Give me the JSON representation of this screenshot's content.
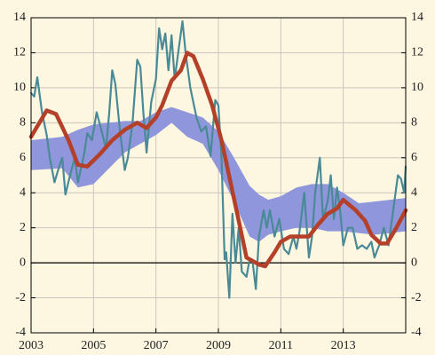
{
  "chart_data": {
    "type": "line",
    "xlim": [
      2003,
      2015
    ],
    "xticks": [
      2003,
      2005,
      2007,
      2009,
      2011,
      2013
    ],
    "ylim": [
      -4,
      14
    ],
    "yticks": [
      -4,
      -2,
      0,
      2,
      4,
      6,
      8,
      10,
      12,
      14
    ],
    "y2lim": [
      -4,
      14
    ],
    "y2ticks": [
      -4,
      -2,
      0,
      2,
      4,
      6,
      8,
      10,
      12,
      14
    ],
    "grid": true,
    "band": {
      "color": "#8f96dc",
      "x": [
        2003,
        2004,
        2004.5,
        2005,
        2006,
        2006.5,
        2007,
        2007.5,
        2008,
        2008.5,
        2009,
        2009.5,
        2010,
        2010.3,
        2010.6,
        2011,
        2011.5,
        2012,
        2012.5,
        2013,
        2013.5,
        2014,
        2015
      ],
      "lower": [
        5.3,
        5.4,
        4.3,
        4.5,
        6.3,
        6.8,
        7.3,
        8.0,
        7.2,
        6.8,
        5.3,
        3.5,
        1.5,
        1.2,
        1.6,
        1.8,
        2.0,
        2.0,
        1.8,
        1.8,
        1.7,
        1.6,
        1.8
      ],
      "upper": [
        7.0,
        7.2,
        7.6,
        7.9,
        8.1,
        8.1,
        8.6,
        8.9,
        8.6,
        8.3,
        7.5,
        6.0,
        4.4,
        3.9,
        3.6,
        3.8,
        4.3,
        4.5,
        4.5,
        4.0,
        3.4,
        3.5,
        3.7
      ]
    },
    "series": [
      {
        "color": "#4a8a96",
        "width": 2.2,
        "x": [
          2003.0,
          2003.1,
          2003.2,
          2003.35,
          2003.5,
          2003.6,
          2003.75,
          2003.9,
          2004.0,
          2004.1,
          2004.25,
          2004.4,
          2004.5,
          2004.7,
          2004.8,
          2004.95,
          2005.1,
          2005.25,
          2005.4,
          2005.5,
          2005.6,
          2005.7,
          2005.85,
          2006.0,
          2006.1,
          2006.25,
          2006.4,
          2006.5,
          2006.6,
          2006.7,
          2006.85,
          2007.0,
          2007.1,
          2007.2,
          2007.3,
          2007.4,
          2007.5,
          2007.6,
          2007.75,
          2007.85,
          2007.95,
          2008.1,
          2008.3,
          2008.45,
          2008.6,
          2008.75,
          2008.9,
          2009.0,
          2009.1,
          2009.2,
          2009.25,
          2009.35,
          2009.45,
          2009.55,
          2009.65,
          2009.75,
          2009.9,
          2010.0,
          2010.1,
          2010.2,
          2010.3,
          2010.45,
          2010.55,
          2010.65,
          2010.8,
          2010.95,
          2011.1,
          2011.25,
          2011.4,
          2011.5,
          2011.6,
          2011.75,
          2011.9,
          2012.0,
          2012.1,
          2012.25,
          2012.35,
          2012.5,
          2012.6,
          2012.7,
          2012.8,
          2012.9,
          2013.0,
          2013.15,
          2013.3,
          2013.45,
          2013.6,
          2013.75,
          2013.9,
          2014.0,
          2014.15,
          2014.3,
          2014.45,
          2014.6,
          2014.75,
          2014.85,
          2014.95,
          2015.0
        ],
        "values": [
          9.7,
          9.5,
          10.6,
          8.6,
          7.3,
          6.0,
          4.6,
          5.5,
          6.0,
          3.9,
          5.0,
          6.0,
          4.6,
          6.2,
          7.4,
          7.0,
          8.6,
          7.6,
          6.5,
          8.5,
          11.0,
          10.2,
          7.5,
          5.3,
          6.0,
          8.0,
          11.6,
          11.2,
          8.5,
          6.3,
          9.2,
          10.5,
          13.4,
          12.2,
          13.1,
          11.0,
          13.0,
          10.5,
          12.5,
          13.8,
          12.0,
          10.0,
          8.3,
          7.5,
          7.8,
          6.1,
          9.3,
          9.0,
          6.0,
          0.2,
          0.6,
          -2.0,
          2.8,
          0.0,
          2.0,
          -0.5,
          -0.8,
          0.2,
          0.0,
          -1.5,
          1.5,
          3.0,
          2.0,
          3.0,
          1.5,
          2.5,
          0.8,
          0.5,
          1.5,
          0.8,
          1.8,
          4.0,
          0.3,
          1.5,
          4.0,
          6.0,
          2.5,
          3.5,
          5.0,
          2.5,
          4.3,
          3.0,
          1.0,
          2.0,
          2.0,
          0.8,
          1.0,
          0.8,
          1.2,
          0.3,
          1.0,
          2.0,
          1.0,
          3.0,
          5.0,
          4.8,
          4.0,
          5.5
        ]
      },
      {
        "color": "#b5402a",
        "width": 4.5,
        "x": [
          2003.0,
          2003.5,
          2003.8,
          2004.2,
          2004.5,
          2004.8,
          2005.2,
          2005.6,
          2006.0,
          2006.4,
          2006.7,
          2007.0,
          2007.2,
          2007.5,
          2007.8,
          2008.0,
          2008.2,
          2008.5,
          2008.8,
          2009.1,
          2009.4,
          2009.7,
          2009.9,
          2010.3,
          2010.5,
          2010.8,
          2011.0,
          2011.3,
          2011.6,
          2011.9,
          2012.2,
          2012.5,
          2012.8,
          2013.0,
          2013.4,
          2013.7,
          2013.9,
          2014.2,
          2014.4,
          2014.7,
          2015.0
        ],
        "values": [
          7.2,
          8.7,
          8.5,
          7.0,
          5.6,
          5.5,
          6.2,
          7.0,
          7.6,
          8.0,
          7.7,
          8.3,
          9.0,
          10.4,
          11.0,
          12.0,
          11.8,
          10.5,
          9.0,
          7.0,
          4.5,
          2.0,
          0.3,
          -0.1,
          -0.2,
          0.6,
          1.2,
          1.5,
          1.5,
          1.5,
          2.2,
          2.8,
          3.1,
          3.6,
          3.0,
          2.4,
          1.6,
          1.1,
          1.1,
          2.0,
          3.0
        ]
      }
    ]
  }
}
